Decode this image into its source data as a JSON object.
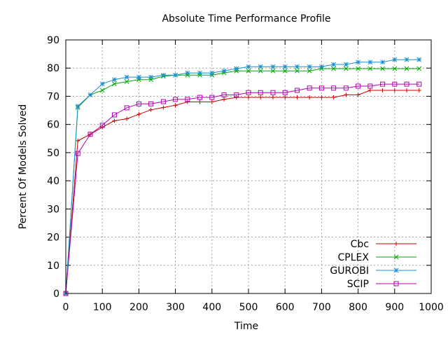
{
  "chart_data": {
    "type": "line",
    "title": "Absolute Time Performance Profile",
    "xlabel": "Time",
    "ylabel": "Percent Of Models Solved",
    "xlim": [
      0,
      1000
    ],
    "ylim": [
      0,
      90
    ],
    "xticks": [
      0,
      100,
      200,
      300,
      400,
      500,
      600,
      700,
      800,
      900,
      1000
    ],
    "yticks": [
      0,
      10,
      20,
      30,
      40,
      50,
      60,
      70,
      80,
      90
    ],
    "grid": true,
    "legend_position": "bottom-right",
    "x": [
      0,
      33,
      67,
      100,
      133,
      167,
      200,
      233,
      267,
      300,
      333,
      367,
      400,
      433,
      467,
      500,
      533,
      567,
      600,
      633,
      667,
      700,
      733,
      767,
      800,
      833,
      867,
      900,
      933,
      967
    ],
    "series": [
      {
        "name": "Cbc",
        "color": "#cc0000",
        "marker": "plus",
        "values": [
          0,
          54.2,
          56.5,
          59,
          61.3,
          62,
          63.6,
          65.2,
          66,
          66.8,
          68,
          68,
          68,
          68.9,
          69.6,
          69.6,
          69.6,
          69.6,
          69.6,
          69.6,
          69.6,
          69.6,
          69.6,
          70.5,
          70.5,
          72.1,
          72.1,
          72.1,
          72.1,
          72.1
        ]
      },
      {
        "name": "CPLEX",
        "color": "#00aa00",
        "marker": "cross",
        "values": [
          0,
          66,
          70.5,
          72.1,
          74.4,
          75.2,
          75.9,
          75.9,
          77.1,
          77.5,
          77.5,
          77.5,
          77.5,
          78.3,
          79,
          79,
          79,
          79,
          79,
          79,
          79,
          79.8,
          79.8,
          79.8,
          79.8,
          79.8,
          79.8,
          79.8,
          79.8,
          79.8
        ]
      },
      {
        "name": "GUROBI",
        "color": "#1a8fd1",
        "marker": "star",
        "values": [
          0,
          66.5,
          70.5,
          74.4,
          75.9,
          76.8,
          76.8,
          76.8,
          77.5,
          77.5,
          78.3,
          78.3,
          78.3,
          79,
          79.8,
          80.5,
          80.5,
          80.5,
          80.5,
          80.5,
          80.5,
          80.5,
          81.3,
          81.3,
          82.1,
          82.1,
          82.1,
          83,
          83,
          83
        ]
      },
      {
        "name": "SCIP",
        "color": "#b000b0",
        "marker": "square",
        "values": [
          0,
          49.7,
          56.5,
          59.7,
          63.4,
          65.9,
          67.3,
          67.3,
          68.1,
          68.9,
          68.9,
          69.6,
          69.6,
          70.5,
          70.5,
          71.3,
          71.3,
          71.3,
          71.3,
          72.1,
          72.9,
          72.9,
          72.9,
          72.9,
          73.6,
          73.6,
          74.3,
          74.3,
          74.3,
          74.3
        ]
      }
    ]
  }
}
